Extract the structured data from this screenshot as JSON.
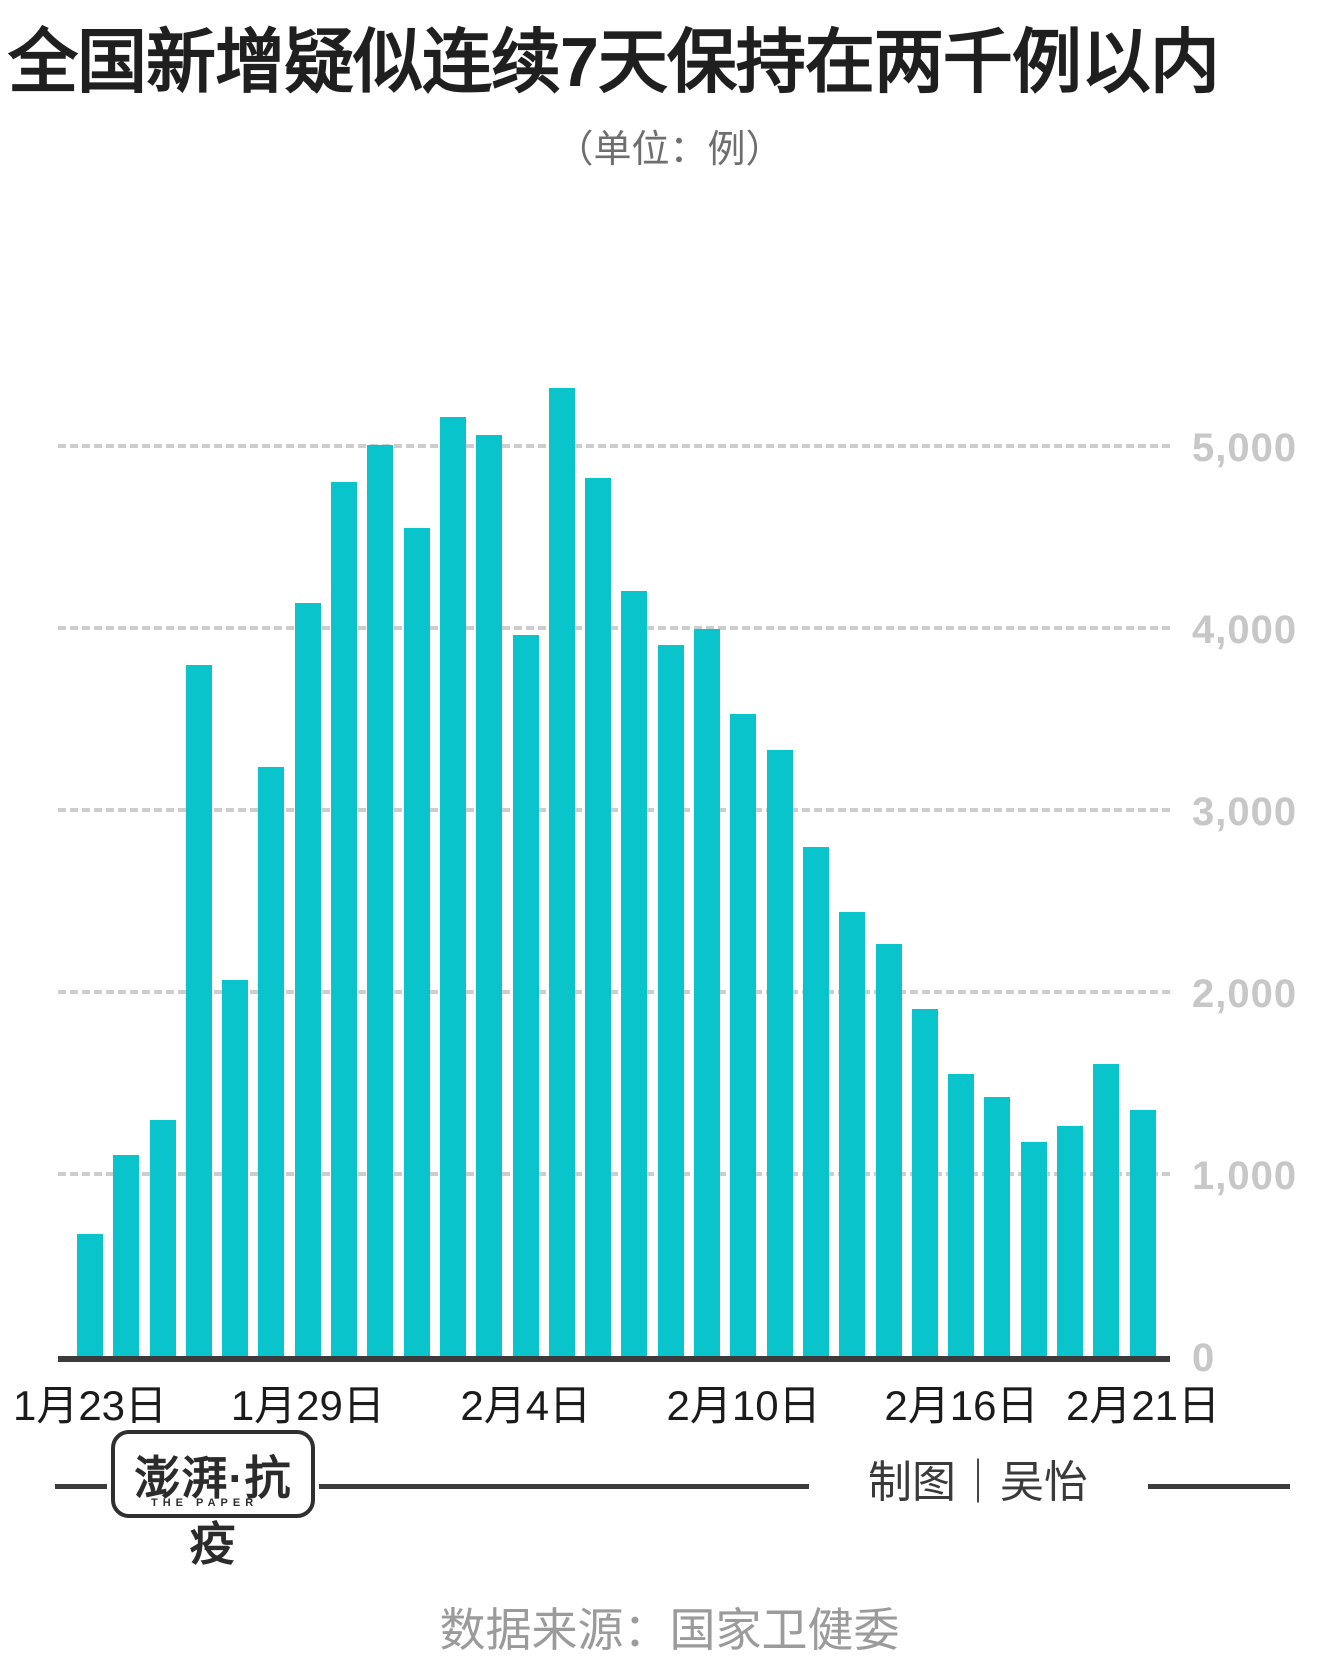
{
  "title": "全国新增疑似连续7天保持在两千例以内",
  "subtitle": "（单位：例）",
  "chart_data": {
    "type": "bar",
    "title": "全国新增疑似连续7天保持在两千例以内",
    "unit_label": "（单位：例）",
    "categories": [
      "1月23日",
      "1月24日",
      "1月25日",
      "1月26日",
      "1月27日",
      "1月28日",
      "1月29日",
      "1月30日",
      "1月31日",
      "2月1日",
      "2月2日",
      "2月3日",
      "2月4日",
      "2月5日",
      "2月6日",
      "2月7日",
      "2月8日",
      "2月9日",
      "2月10日",
      "2月11日",
      "2月12日",
      "2月13日",
      "2月14日",
      "2月15日",
      "2月16日",
      "2月17日",
      "2月18日",
      "2月19日",
      "2月20日",
      "2月21日"
    ],
    "values": [
      680,
      1118,
      1309,
      3806,
      2077,
      3248,
      4148,
      4812,
      5019,
      4562,
      5173,
      5072,
      3971,
      5328,
      4833,
      4214,
      3916,
      4008,
      3536,
      3342,
      2807,
      2450,
      2277,
      1918,
      1563,
      1432,
      1185,
      1277,
      1614,
      1361
    ],
    "x_tick_labels": [
      "1月23日",
      "1月29日",
      "2月4日",
      "2月10日",
      "2月16日",
      "2月21日"
    ],
    "x_tick_indices": [
      0,
      6,
      12,
      18,
      24,
      29
    ],
    "y_ticks": [
      0,
      1000,
      2000,
      3000,
      4000,
      5000
    ],
    "y_tick_labels": [
      "0",
      "1,000",
      "2,000",
      "3,000",
      "4,000",
      "5,000"
    ],
    "ylim": [
      0,
      5500
    ],
    "grid": "horizontal-dashed",
    "legend": "none",
    "bar_color": "#0AC4CC"
  },
  "colors": {
    "bar": "#0AC4CC",
    "gridline": "#cdcdcd",
    "y_label": "#c7c7c7",
    "axis_line": "#3b3b3b",
    "title_text": "#1f1f1f",
    "source_text": "#9b9b9b"
  },
  "footer": {
    "logo_main": "澎湃·抗疫",
    "logo_sub": "THE PAPER",
    "credit": "制图｜吴怡",
    "source": "数据来源：国家卫健委"
  }
}
